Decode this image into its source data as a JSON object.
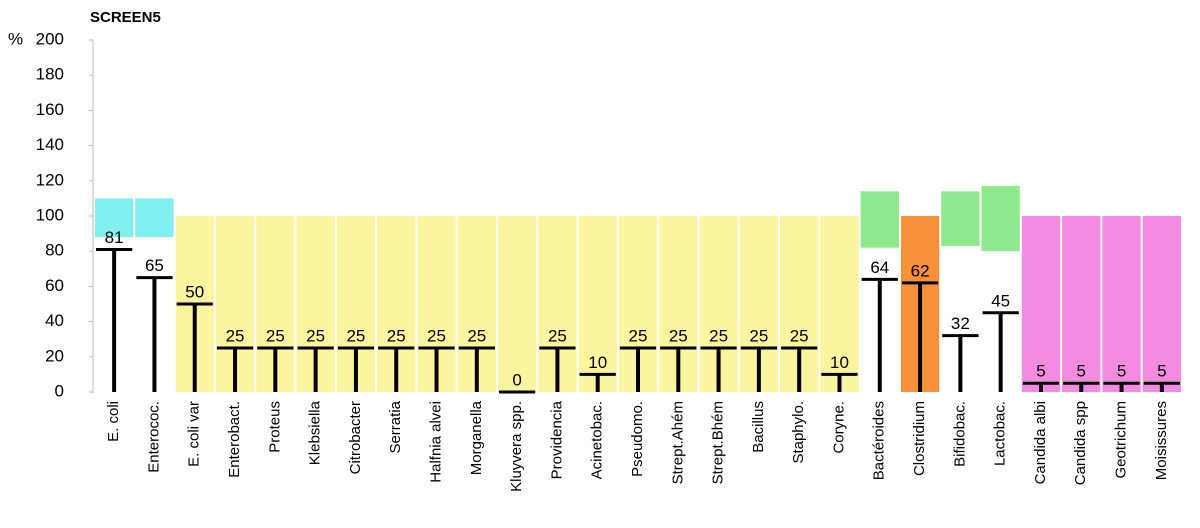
{
  "chart_data": {
    "type": "bar",
    "title": "SCREEN5",
    "y_label": "%",
    "categories": [
      "E. coli",
      "Enterococ.",
      "E. coli var",
      "Enterobact.",
      "Proteus",
      "Klebsiella",
      "Citrobacter",
      "Serratia",
      "Halfnia alvei",
      "Morganella",
      "Kluyvera spp.",
      "Providencia",
      "Acinetobac.",
      "Pseudomo.",
      "Strept.Ahém",
      "Strept.Bhém",
      "Bacillus",
      "Staphylo.",
      "Coryne.",
      "Bactéroides",
      "Clostridium",
      "Bifidobac.",
      "Lactobac.",
      "Candida albi",
      "Candida spp",
      "Geotrichum",
      "Moisissures"
    ],
    "values": [
      81,
      65,
      50,
      25,
      25,
      25,
      25,
      25,
      25,
      25,
      0,
      25,
      10,
      25,
      25,
      25,
      25,
      25,
      10,
      64,
      62,
      32,
      45,
      5,
      5,
      5,
      5
    ],
    "color": "#000000",
    "reference_low": [
      88,
      88,
      0,
      0,
      0,
      0,
      0,
      0,
      0,
      0,
      0,
      0,
      0,
      0,
      0,
      0,
      0,
      0,
      0,
      82,
      0,
      83,
      80,
      0,
      0,
      0,
      0
    ],
    "reference_high": [
      110,
      110,
      100,
      100,
      100,
      100,
      100,
      100,
      100,
      100,
      100,
      100,
      100,
      100,
      100,
      100,
      100,
      100,
      100,
      114,
      100,
      114,
      117,
      100,
      100,
      100,
      100
    ],
    "reference_colors": [
      "#80f0f0",
      "#80f0f0",
      "#fbf5a0",
      "#fbf5a0",
      "#fbf5a0",
      "#fbf5a0",
      "#fbf5a0",
      "#fbf5a0",
      "#fbf5a0",
      "#fbf5a0",
      "#fbf5a0",
      "#fbf5a0",
      "#fbf5a0",
      "#fbf5a0",
      "#fbf5a0",
      "#fbf5a0",
      "#fbf5a0",
      "#fbf5a0",
      "#fbf5a0",
      "#8ee88e",
      "#f7903a",
      "#8ee88e",
      "#8ee88e",
      "#f38ce0",
      "#f38ce0",
      "#f38ce0",
      "#f38ce0"
    ],
    "ylim": [
      0,
      200
    ],
    "yticks": [
      0,
      20,
      40,
      60,
      80,
      100,
      120,
      140,
      160,
      180,
      200
    ]
  }
}
